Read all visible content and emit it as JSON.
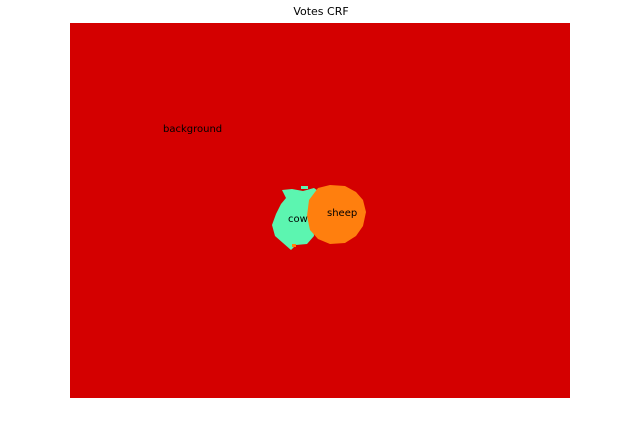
{
  "figure": {
    "title": "Votes CRF"
  },
  "segmentation": {
    "labels": {
      "background": "background",
      "cow": "cow",
      "sheep": "sheep"
    },
    "colors": {
      "background": "#d40000",
      "cow": "#5cf5b0",
      "sheep": "#ff7f0e",
      "page": "#ffffff"
    }
  }
}
